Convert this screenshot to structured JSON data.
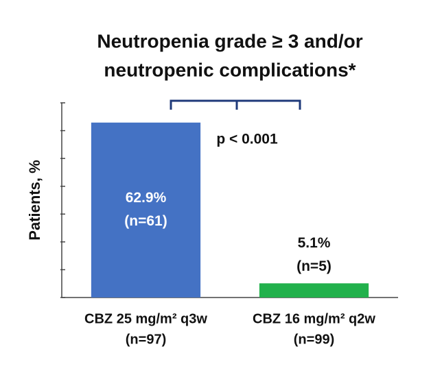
{
  "chart_data": {
    "type": "bar",
    "title": [
      "Neutropenia grade ≥ 3 and/or",
      "neutropenic complications*"
    ],
    "y_label": "Patients, %",
    "categories": [
      "CBZ 25 mg/m² q3w",
      "CBZ 16 mg/m² q2w"
    ],
    "category_sublabels": [
      "(n=97)",
      "(n=99)"
    ],
    "values": [
      62.9,
      5.1
    ],
    "value_labels": [
      "62.9%",
      "5.1%"
    ],
    "count_labels": [
      "(n=61)",
      "(n=5)"
    ],
    "colors": [
      "#4472c4",
      "#22b14c"
    ],
    "annotation": "p < 0.001",
    "ylim": [
      0,
      70
    ],
    "yticks": [
      0,
      10,
      20,
      30,
      40,
      50,
      60,
      70
    ]
  }
}
